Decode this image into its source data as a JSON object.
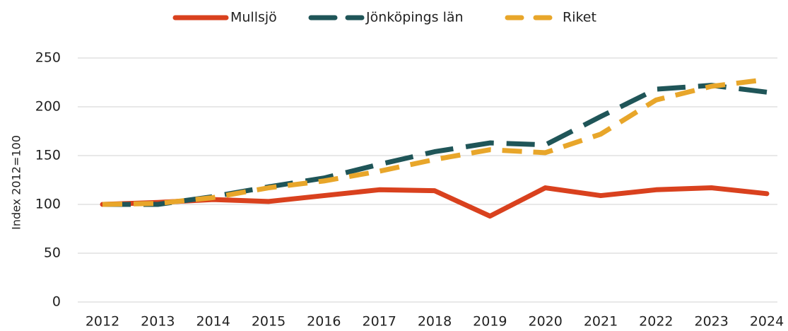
{
  "chart_data": {
    "type": "line",
    "y_label": "Index 2012=100",
    "categories": [
      "2012",
      "2013",
      "2014",
      "2015",
      "2016",
      "2017",
      "2018",
      "2019",
      "2020",
      "2021",
      "2022",
      "2023",
      "2024"
    ],
    "series": [
      {
        "name": "Mullsjö",
        "color": "#d9411e",
        "dashed": false,
        "values": [
          100,
          102,
          105,
          103,
          109,
          115,
          114,
          88,
          117,
          109,
          115,
          117,
          111
        ]
      },
      {
        "name": "Jönköpings län",
        "color": "#1f5558",
        "dashed": true,
        "values": [
          100,
          100,
          108,
          118,
          127,
          141,
          154,
          163,
          161,
          190,
          218,
          222,
          215
        ]
      },
      {
        "name": "Riket",
        "color": "#e8a62a",
        "dashed": true,
        "values": [
          100,
          101,
          107,
          117,
          124,
          134,
          146,
          156,
          153,
          172,
          207,
          221,
          228
        ]
      }
    ],
    "ylim": [
      0,
      250
    ],
    "yticks": [
      0,
      50,
      100,
      150,
      200,
      250
    ],
    "grid": true,
    "legend": "top"
  }
}
